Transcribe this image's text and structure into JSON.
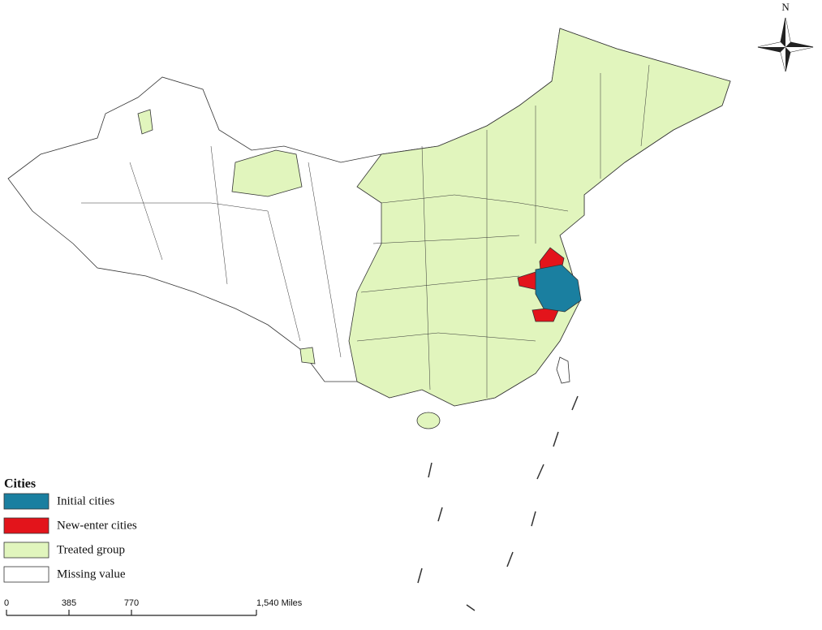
{
  "north_arrow": {
    "label": "N"
  },
  "legend": {
    "title": "Cities",
    "items": [
      {
        "label": "Initial cities",
        "color": "#1a7fa0"
      },
      {
        "label": "New-enter cities",
        "color": "#e3141b"
      },
      {
        "label": "Treated group",
        "color": "#e1f5bd"
      },
      {
        "label": "Missing value",
        "color": "#ffffff"
      }
    ]
  },
  "scale_bar": {
    "ticks": [
      0,
      385,
      770,
      {
        "value": 1540,
        "label": "1,540 Miles"
      }
    ]
  }
}
